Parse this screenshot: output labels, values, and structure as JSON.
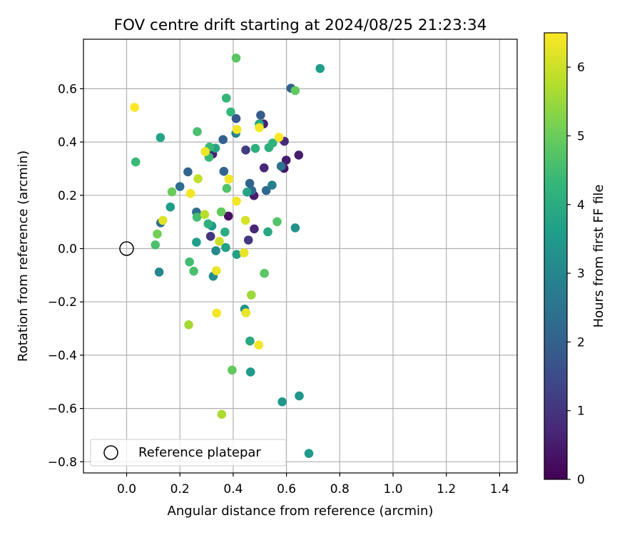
{
  "chart_data": {
    "type": "scatter",
    "title": "FOV centre drift starting at 2024/08/25 21:23:34",
    "xlabel": "Angular distance from reference (arcmin)",
    "ylabel": "Rotation from reference (arcmin)",
    "xlim": [
      -0.16,
      1.47
    ],
    "ylim": [
      -0.845,
      0.785
    ],
    "xticks": [
      0.0,
      0.2,
      0.4,
      0.6,
      0.8,
      1.0,
      1.2,
      1.4
    ],
    "xtick_labels": [
      "0.0",
      "0.2",
      "0.4",
      "0.6",
      "0.8",
      "1.0",
      "1.2",
      "1.4"
    ],
    "yticks": [
      -0.8,
      -0.6,
      -0.4,
      -0.2,
      0.0,
      0.2,
      0.4,
      0.6
    ],
    "ytick_labels": [
      "−0.8",
      "−0.6",
      "−0.4",
      "−0.2",
      "0.0",
      "0.2",
      "0.4",
      "0.6"
    ],
    "grid": true,
    "legend": {
      "placement": "lower-left",
      "entries": [
        "Reference platepar"
      ]
    },
    "reference_marker": {
      "x": 0.0,
      "y": 0.0,
      "style": "open-circle"
    },
    "colorbar": {
      "label": "Hours from first FF file",
      "min": 0,
      "max": 6.5,
      "ticks": [
        0,
        1,
        2,
        3,
        4,
        5,
        6
      ],
      "tick_labels": [
        "0",
        "1",
        "2",
        "3",
        "4",
        "5",
        "6"
      ],
      "colormap": "viridis",
      "colors": [
        "#440154",
        "#482878",
        "#3e4989",
        "#31688e",
        "#26828e",
        "#1f9e89",
        "#35b779",
        "#6ece58",
        "#b5de2b",
        "#fde725"
      ]
    },
    "points": [
      {
        "x": 0.382,
        "y": 0.122,
        "h": 0.3
      },
      {
        "x": 0.591,
        "y": 0.301,
        "h": 0.4
      },
      {
        "x": 0.478,
        "y": 0.199,
        "h": 0.5
      },
      {
        "x": 0.599,
        "y": 0.332,
        "h": 0.5
      },
      {
        "x": 0.646,
        "y": 0.351,
        "h": 0.5
      },
      {
        "x": 0.323,
        "y": 0.355,
        "h": 0.6
      },
      {
        "x": 0.514,
        "y": 0.468,
        "h": 0.6
      },
      {
        "x": 0.479,
        "y": 0.074,
        "h": 0.7
      },
      {
        "x": 0.516,
        "y": 0.303,
        "h": 0.7
      },
      {
        "x": 0.592,
        "y": 0.403,
        "h": 0.8
      },
      {
        "x": 0.315,
        "y": 0.046,
        "h": 1.0
      },
      {
        "x": 0.457,
        "y": 0.032,
        "h": 1.1
      },
      {
        "x": 0.447,
        "y": 0.37,
        "h": 1.2
      },
      {
        "x": 0.411,
        "y": 0.488,
        "h": 1.8
      },
      {
        "x": 0.503,
        "y": 0.501,
        "h": 1.9
      },
      {
        "x": 0.617,
        "y": 0.602,
        "h": 2.0
      },
      {
        "x": 0.362,
        "y": 0.409,
        "h": 2.0
      },
      {
        "x": 0.23,
        "y": 0.288,
        "h": 2.1
      },
      {
        "x": 0.365,
        "y": 0.29,
        "h": 2.1
      },
      {
        "x": 0.462,
        "y": 0.245,
        "h": 2.1
      },
      {
        "x": 0.524,
        "y": 0.218,
        "h": 2.2
      },
      {
        "x": 0.47,
        "y": 0.218,
        "h": 2.2
      },
      {
        "x": 0.2,
        "y": 0.233,
        "h": 2.3
      },
      {
        "x": 0.262,
        "y": 0.137,
        "h": 2.3
      },
      {
        "x": 0.128,
        "y": 0.097,
        "h": 2.4
      },
      {
        "x": 0.58,
        "y": 0.309,
        "h": 2.5
      },
      {
        "x": 0.546,
        "y": 0.238,
        "h": 2.8
      },
      {
        "x": 0.41,
        "y": 0.433,
        "h": 2.9
      },
      {
        "x": 0.122,
        "y": -0.088,
        "h": 3.0
      },
      {
        "x": 0.335,
        "y": -0.008,
        "h": 3.1
      },
      {
        "x": 0.325,
        "y": -0.104,
        "h": 3.2
      },
      {
        "x": 0.633,
        "y": 0.078,
        "h": 3.3
      },
      {
        "x": 0.443,
        "y": -0.227,
        "h": 3.3
      },
      {
        "x": 0.584,
        "y": -0.575,
        "h": 3.4
      },
      {
        "x": 0.648,
        "y": -0.553,
        "h": 3.4
      },
      {
        "x": 0.684,
        "y": -0.769,
        "h": 3.5
      },
      {
        "x": 0.465,
        "y": -0.463,
        "h": 3.5
      },
      {
        "x": 0.726,
        "y": 0.676,
        "h": 3.6
      },
      {
        "x": 0.32,
        "y": 0.085,
        "h": 3.5
      },
      {
        "x": 0.164,
        "y": 0.156,
        "h": 3.6
      },
      {
        "x": 0.262,
        "y": 0.024,
        "h": 3.6
      },
      {
        "x": 0.372,
        "y": 0.004,
        "h": 3.7
      },
      {
        "x": 0.413,
        "y": -0.022,
        "h": 3.7
      },
      {
        "x": 0.333,
        "y": 0.377,
        "h": 3.8
      },
      {
        "x": 0.498,
        "y": 0.468,
        "h": 3.8
      },
      {
        "x": 0.127,
        "y": 0.417,
        "h": 3.8
      },
      {
        "x": 0.452,
        "y": 0.212,
        "h": 3.8
      },
      {
        "x": 0.53,
        "y": 0.063,
        "h": 3.9
      },
      {
        "x": 0.463,
        "y": -0.347,
        "h": 3.9
      },
      {
        "x": 0.369,
        "y": 0.062,
        "h": 4.0
      },
      {
        "x": 0.306,
        "y": 0.093,
        "h": 4.1
      },
      {
        "x": 0.483,
        "y": 0.376,
        "h": 4.1
      },
      {
        "x": 0.534,
        "y": 0.379,
        "h": 4.1
      },
      {
        "x": 0.548,
        "y": 0.396,
        "h": 4.2
      },
      {
        "x": 0.374,
        "y": 0.565,
        "h": 4.3
      },
      {
        "x": 0.391,
        "y": 0.513,
        "h": 4.3
      },
      {
        "x": 0.034,
        "y": 0.325,
        "h": 4.4
      },
      {
        "x": 0.309,
        "y": 0.343,
        "h": 4.4
      },
      {
        "x": 0.311,
        "y": 0.381,
        "h": 4.4
      },
      {
        "x": 0.264,
        "y": 0.118,
        "h": 4.5
      },
      {
        "x": 0.236,
        "y": -0.05,
        "h": 4.5
      },
      {
        "x": 0.252,
        "y": -0.085,
        "h": 4.6
      },
      {
        "x": 0.108,
        "y": 0.014,
        "h": 4.6
      },
      {
        "x": 0.265,
        "y": 0.439,
        "h": 4.6
      },
      {
        "x": 0.565,
        "y": 0.101,
        "h": 4.7
      },
      {
        "x": 0.376,
        "y": 0.226,
        "h": 4.7
      },
      {
        "x": 0.517,
        "y": -0.093,
        "h": 4.8
      },
      {
        "x": 0.411,
        "y": 0.715,
        "h": 4.8
      },
      {
        "x": 0.633,
        "y": 0.593,
        "h": 4.9
      },
      {
        "x": 0.396,
        "y": -0.456,
        "h": 4.9
      },
      {
        "x": 0.355,
        "y": 0.138,
        "h": 4.9
      },
      {
        "x": 0.17,
        "y": 0.213,
        "h": 5.0
      },
      {
        "x": 0.115,
        "y": 0.055,
        "h": 5.1
      },
      {
        "x": 0.468,
        "y": -0.174,
        "h": 5.5
      },
      {
        "x": 0.233,
        "y": -0.286,
        "h": 5.6
      },
      {
        "x": 0.357,
        "y": -0.622,
        "h": 5.7
      },
      {
        "x": 0.293,
        "y": 0.128,
        "h": 5.8
      },
      {
        "x": 0.268,
        "y": 0.262,
        "h": 5.9
      },
      {
        "x": 0.348,
        "y": 0.027,
        "h": 6.0
      },
      {
        "x": 0.446,
        "y": 0.106,
        "h": 6.1
      },
      {
        "x": 0.136,
        "y": 0.106,
        "h": 6.2
      },
      {
        "x": 0.295,
        "y": 0.364,
        "h": 6.3
      },
      {
        "x": 0.337,
        "y": -0.083,
        "h": 6.3
      },
      {
        "x": 0.441,
        "y": -0.016,
        "h": 6.3
      },
      {
        "x": 0.448,
        "y": -0.241,
        "h": 6.3
      },
      {
        "x": 0.338,
        "y": -0.242,
        "h": 6.4
      },
      {
        "x": 0.496,
        "y": -0.362,
        "h": 6.4
      },
      {
        "x": 0.24,
        "y": 0.207,
        "h": 6.4
      },
      {
        "x": 0.384,
        "y": 0.261,
        "h": 6.4
      },
      {
        "x": 0.412,
        "y": 0.178,
        "h": 6.4
      },
      {
        "x": 0.414,
        "y": 0.447,
        "h": 6.4
      },
      {
        "x": 0.498,
        "y": 0.454,
        "h": 6.4
      },
      {
        "x": 0.572,
        "y": 0.418,
        "h": 6.5
      },
      {
        "x": 0.03,
        "y": 0.53,
        "h": 6.5
      }
    ]
  }
}
